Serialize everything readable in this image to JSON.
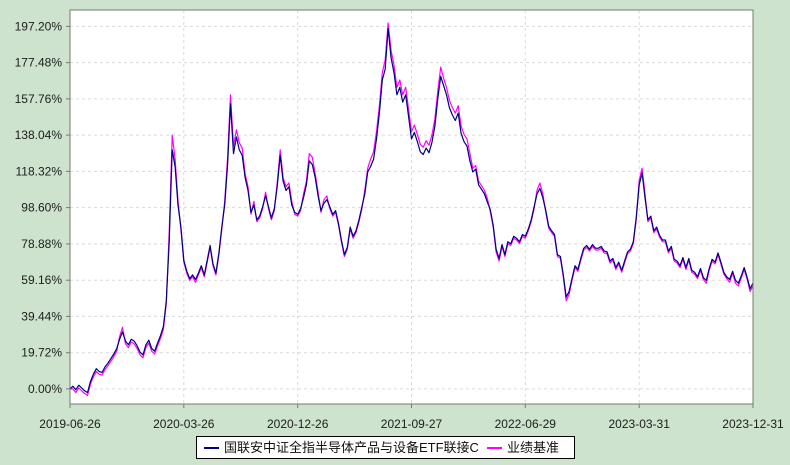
{
  "chart_data": {
    "type": "line",
    "title": "",
    "xlabel": "",
    "ylabel": "",
    "grid": "dashed",
    "legend_position": "bottom-center",
    "x_tick_labels": [
      "2019-06-26",
      "2020-03-26",
      "2020-12-26",
      "2021-09-27",
      "2022-06-29",
      "2023-03-31",
      "2023-12-31"
    ],
    "y_ticks": [
      0,
      19.72,
      39.44,
      59.16,
      78.88,
      98.6,
      118.32,
      138.04,
      157.76,
      177.48,
      197.2
    ],
    "y_tick_labels": [
      "0.00%",
      "19.72%",
      "39.44%",
      "59.16%",
      "78.88%",
      "98.60%",
      "118.32%",
      "138.04%",
      "157.76%",
      "177.48%",
      "197.20%"
    ],
    "ylim": [
      -8.2,
      206.1
    ],
    "series": [
      {
        "name": "国联安中证全指半导体产品与设备ETF联接C",
        "color": "#000080",
        "values": [
          0,
          1.5,
          -0.5,
          2,
          0.5,
          -1,
          -2,
          4,
          8,
          11,
          9.5,
          9,
          12,
          14,
          16.5,
          19,
          22,
          27,
          31,
          26,
          24,
          27,
          26,
          23.5,
          20,
          18.5,
          24,
          26.5,
          22,
          20.5,
          25,
          29,
          34,
          48,
          80,
          130,
          121,
          100,
          88,
          70,
          64,
          60,
          62,
          59.5,
          63,
          67,
          62,
          70,
          78,
          68,
          63,
          74,
          88,
          100,
          122,
          155,
          128,
          137,
          130,
          127,
          115,
          108,
          96,
          100,
          92,
          94,
          99,
          105,
          99,
          93,
          98,
          110,
          127,
          113,
          108,
          110,
          100,
          96,
          95,
          98,
          104,
          111,
          124,
          122,
          115,
          105,
          97,
          101,
          103,
          99,
          95,
          97,
          90,
          81,
          73,
          77,
          88,
          83,
          86,
          92,
          99,
          106,
          118,
          121,
          125,
          136,
          150,
          168,
          174,
          196,
          180,
          172,
          160,
          164,
          156,
          160,
          148,
          136,
          139.5,
          134.5,
          129,
          127.5,
          131,
          128.5,
          134,
          143,
          158,
          170,
          165,
          160,
          153,
          149,
          146,
          150,
          139,
          134.5,
          132,
          124,
          118,
          119.5,
          111,
          108.5,
          106,
          101.5,
          97.5,
          89,
          76,
          71,
          78.5,
          73,
          80,
          79,
          83,
          82,
          80,
          84,
          83,
          87,
          92,
          99,
          106,
          109,
          104,
          97,
          88.5,
          86,
          84,
          73,
          72,
          62,
          50,
          53,
          60,
          67,
          65,
          71,
          76.5,
          78,
          76,
          78.5,
          76.6,
          76.5,
          77.5,
          75,
          74.5,
          69.5,
          71,
          66,
          69,
          64.5,
          69.5,
          74.5,
          76,
          80,
          93,
          111,
          117.5,
          104,
          92,
          94,
          86,
          88,
          83.5,
          81,
          81,
          75,
          77.5,
          70.5,
          69.5,
          67,
          71.5,
          66,
          71,
          64.5,
          63.5,
          61,
          65.5,
          60.5,
          59,
          65.5,
          70.5,
          69,
          74,
          69,
          63.5,
          61,
          59.5,
          64,
          59,
          57.5,
          61.5,
          66,
          60.5,
          54.5,
          57.5
        ]
      },
      {
        "name": "业绩基准",
        "color": "#FF00FF",
        "values": [
          0,
          0,
          -2,
          0.5,
          -1,
          -2.5,
          -3.5,
          2.5,
          6.5,
          9.5,
          8,
          7.5,
          10.5,
          12.5,
          15,
          17.5,
          20.5,
          28.5,
          33.5,
          24.5,
          22.5,
          25.5,
          24.5,
          22,
          18.5,
          17,
          22.5,
          25,
          20.5,
          19,
          23.5,
          27.5,
          32.5,
          46.5,
          85,
          138,
          125,
          102,
          87,
          69,
          63,
          59,
          61,
          58,
          62,
          66,
          61,
          69,
          77,
          67,
          62,
          73,
          87,
          102,
          126,
          160,
          132,
          141,
          134,
          131,
          117,
          110,
          95,
          102,
          91,
          93,
          98,
          107,
          98,
          92,
          97,
          112,
          130,
          115,
          110,
          112,
          102,
          95,
          94,
          97,
          106,
          113,
          128,
          126,
          117,
          107,
          96,
          103,
          105,
          98,
          94,
          96,
          89,
          80,
          72,
          76,
          87,
          82,
          85,
          91,
          98,
          108,
          120,
          125,
          129,
          140,
          154,
          172,
          179,
          199,
          184,
          176,
          164,
          168,
          160,
          164,
          152,
          140,
          143.5,
          138.5,
          133,
          131.5,
          135,
          132.5,
          138,
          147,
          162,
          175,
          169,
          164,
          157,
          153,
          150,
          154,
          143,
          138.5,
          136,
          128,
          120,
          121.5,
          113,
          110.5,
          108,
          103.5,
          96.5,
          88,
          74.5,
          69.5,
          77.5,
          72,
          79,
          78,
          82,
          81,
          79,
          83,
          82,
          86,
          91,
          98,
          108,
          112,
          106,
          96,
          87.5,
          85,
          83,
          72,
          71,
          61,
          48,
          51.5,
          59,
          66,
          64,
          70,
          75.5,
          77,
          75,
          77.5,
          75.6,
          75.5,
          76.5,
          74,
          73.5,
          68.5,
          70,
          65,
          68,
          63.5,
          68.5,
          73.5,
          75,
          79,
          92,
          113.5,
          120,
          106,
          91,
          93,
          85,
          87,
          82.5,
          80,
          80,
          74,
          76.5,
          69.5,
          68.5,
          66,
          70.5,
          65,
          70,
          63.5,
          62.5,
          60,
          64.5,
          59.5,
          57.5,
          64.5,
          69.5,
          68,
          73,
          68,
          62.5,
          60,
          58,
          63,
          57.5,
          56,
          60.5,
          65,
          59.5,
          53,
          56
        ]
      }
    ]
  },
  "colors": {
    "background": "#CDE3CD",
    "plot_background": "#FFFFFF",
    "grid": "#D9D9D9",
    "axis": "#6F7F6F",
    "text": "#1C1C1C",
    "legend_border": "#000000",
    "legend_background": "#FFFFFF"
  }
}
